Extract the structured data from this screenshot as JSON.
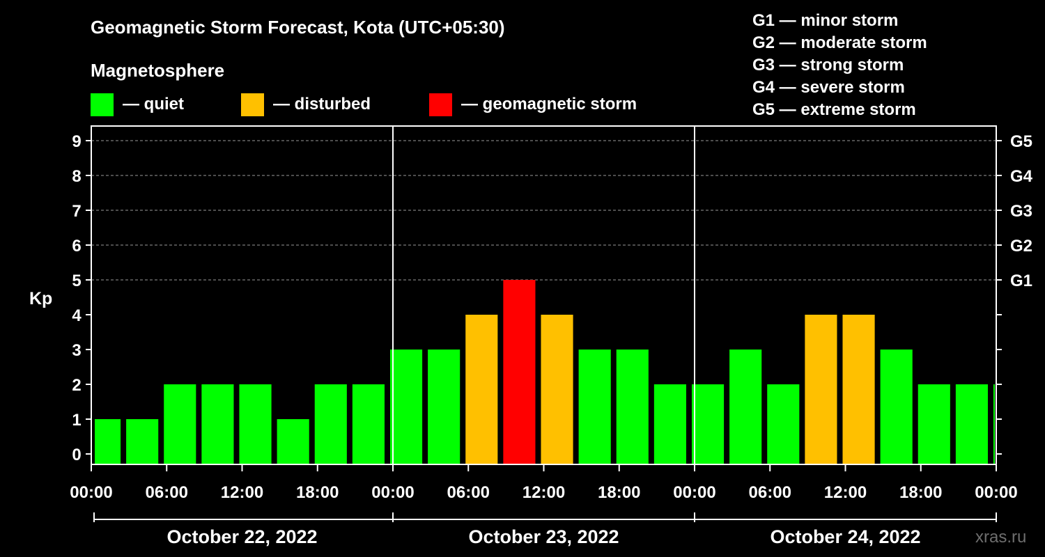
{
  "title": "Geomagnetic Storm Forecast, Kota (UTC+05:30)",
  "legend": {
    "heading": "Magnetosphere",
    "items": [
      {
        "label": "— quiet",
        "color": "#00ff00"
      },
      {
        "label": "— disturbed",
        "color": "#ffc000"
      },
      {
        "label": "— geomagnetic storm",
        "color": "#ff0000"
      }
    ]
  },
  "scale": [
    "G1 — minor storm",
    "G2 — moderate storm",
    "G3 — strong storm",
    "G4 — severe storm",
    "G5 — extreme storm"
  ],
  "watermark": "xras.ru",
  "chart_data": {
    "type": "bar",
    "ylabel": "Kp",
    "ylim": [
      0,
      9
    ],
    "yticks": [
      0,
      1,
      2,
      3,
      4,
      5,
      6,
      7,
      8,
      9
    ],
    "g_levels": [
      {
        "label": "G1",
        "kp": 5
      },
      {
        "label": "G2",
        "kp": 6
      },
      {
        "label": "G3",
        "kp": 7
      },
      {
        "label": "G4",
        "kp": 8
      },
      {
        "label": "G5",
        "kp": 9
      }
    ],
    "x_range_hours": [
      0,
      72
    ],
    "x_tick_labels": [
      "00:00",
      "06:00",
      "12:00",
      "18:00",
      "00:00",
      "06:00",
      "12:00",
      "18:00",
      "00:00",
      "06:00",
      "12:00",
      "18:00",
      "00:00"
    ],
    "dates": [
      "October 22, 2022",
      "October 23, 2022",
      "October 24, 2022"
    ],
    "bars": [
      {
        "start_hour": 0,
        "end_hour": 2.5,
        "kp": 1
      },
      {
        "start_hour": 2.5,
        "end_hour": 5.5,
        "kp": 1
      },
      {
        "start_hour": 5.5,
        "end_hour": 8.5,
        "kp": 2
      },
      {
        "start_hour": 8.5,
        "end_hour": 11.5,
        "kp": 2
      },
      {
        "start_hour": 11.5,
        "end_hour": 14.5,
        "kp": 2
      },
      {
        "start_hour": 14.5,
        "end_hour": 17.5,
        "kp": 1
      },
      {
        "start_hour": 17.5,
        "end_hour": 20.5,
        "kp": 2
      },
      {
        "start_hour": 20.5,
        "end_hour": 23.5,
        "kp": 2
      },
      {
        "start_hour": 23.5,
        "end_hour": 26.5,
        "kp": 3
      },
      {
        "start_hour": 26.5,
        "end_hour": 29.5,
        "kp": 3
      },
      {
        "start_hour": 29.5,
        "end_hour": 32.5,
        "kp": 4
      },
      {
        "start_hour": 32.5,
        "end_hour": 35.5,
        "kp": 5
      },
      {
        "start_hour": 35.5,
        "end_hour": 38.5,
        "kp": 4
      },
      {
        "start_hour": 38.5,
        "end_hour": 41.5,
        "kp": 3
      },
      {
        "start_hour": 41.5,
        "end_hour": 44.5,
        "kp": 3
      },
      {
        "start_hour": 44.5,
        "end_hour": 47.5,
        "kp": 2
      },
      {
        "start_hour": 47.5,
        "end_hour": 50.5,
        "kp": 2
      },
      {
        "start_hour": 50.5,
        "end_hour": 53.5,
        "kp": 3
      },
      {
        "start_hour": 53.5,
        "end_hour": 56.5,
        "kp": 2
      },
      {
        "start_hour": 56.5,
        "end_hour": 59.5,
        "kp": 4
      },
      {
        "start_hour": 59.5,
        "end_hour": 62.5,
        "kp": 4
      },
      {
        "start_hour": 62.5,
        "end_hour": 65.5,
        "kp": 3
      },
      {
        "start_hour": 65.5,
        "end_hour": 68.5,
        "kp": 2
      },
      {
        "start_hour": 68.5,
        "end_hour": 71.5,
        "kp": 2
      },
      {
        "start_hour": 71.5,
        "end_hour": 72,
        "kp": 2
      }
    ],
    "colors": {
      "quiet": "#00ff00",
      "disturbed": "#ffc000",
      "storm": "#ff0000"
    }
  }
}
